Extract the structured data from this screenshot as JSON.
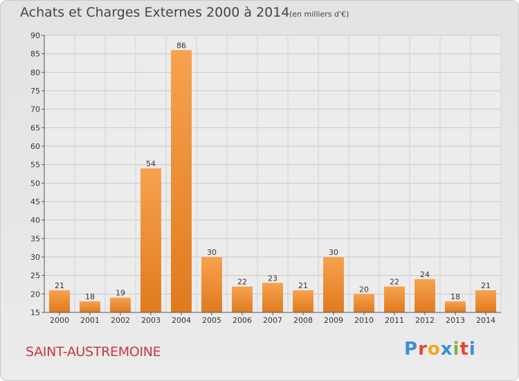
{
  "header": {
    "title": "Achats et Charges Externes 2000 à 2014",
    "subtitle": "(en milliers d'€)"
  },
  "footer": {
    "commune": "SAINT-AUSTREMOINE",
    "logo_letters": [
      "P",
      "r",
      "o",
      "x",
      "i",
      "t",
      "i"
    ],
    "logo_colors": [
      "#3a8fd6",
      "#e8452c",
      "#f5a623",
      "#3a8fd6",
      "#7cb342",
      "#e8452c",
      "#3a8fd6"
    ]
  },
  "chart_data": {
    "type": "bar",
    "categories": [
      "2000",
      "2001",
      "2002",
      "2003",
      "2004",
      "2005",
      "2006",
      "2007",
      "2008",
      "2009",
      "2010",
      "2011",
      "2012",
      "2013",
      "2014"
    ],
    "values": [
      21,
      18,
      19,
      54,
      86,
      30,
      22,
      23,
      21,
      30,
      20,
      22,
      24,
      18,
      21
    ],
    "ylim": [
      15,
      90
    ],
    "yticks": [
      15,
      20,
      25,
      30,
      35,
      40,
      45,
      50,
      55,
      60,
      65,
      70,
      75,
      80,
      85,
      90
    ],
    "grid": true,
    "bar_color": "#f0913a"
  }
}
